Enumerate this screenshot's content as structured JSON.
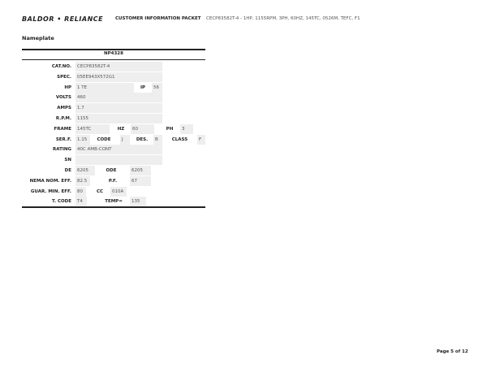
{
  "header": {
    "logo": "BALDOR • RELIANCE",
    "doc_title": "CUSTOMER INFORMATION PACKET",
    "description": "CECP83582T-4 - 1HP, 1155RPM, 3PH, 60HZ, 145TC, 0526M, TEFC, F1"
  },
  "section_title": "Nameplate",
  "nameplate": {
    "id": "NP4328",
    "rows": [
      {
        "label": "CAT.NO.",
        "value": "CECP83582T-4"
      },
      {
        "label": "SPEC.",
        "value": "05EE943X572G1"
      },
      {
        "label": "HP",
        "value": "1 TE",
        "f2_label": "IP",
        "f2_value": "56"
      },
      {
        "label": "VOLTS",
        "value": "460"
      },
      {
        "label": "AMPS",
        "value": "1.7"
      },
      {
        "label": "R.P.M.",
        "value": "1155"
      },
      {
        "label": "FRAME",
        "value": "145TC",
        "f2_label": "HZ",
        "f2_value": "60",
        "f3_label": "PH",
        "f3_value": "3"
      },
      {
        "label": "SER.F.",
        "value": "1.15",
        "f2_label": "CODE",
        "f2_value": "J",
        "f3_label": "DES.",
        "f3_value": "B",
        "f4_label": "CLASS",
        "f4_value": "F"
      },
      {
        "label": "RATING",
        "value": "40C AMB-CONT"
      },
      {
        "label": "SN",
        "value": ""
      },
      {
        "label": "DE",
        "value": "6205",
        "f2_label": "ODE",
        "f2_value": "6205"
      },
      {
        "label": "NEMA NOM. EFF.",
        "value": "82.5",
        "f2_label": "P.F.",
        "f2_value": "67"
      },
      {
        "label": "GUAR. MIN. EFF.",
        "value": "80",
        "f2_label": "CC",
        "f2_value": "010A"
      },
      {
        "label": "T. CODE",
        "value": "T4",
        "f2_label": "TEMP=",
        "f2_value": "135"
      }
    ]
  },
  "footer": {
    "page": "Page 5 of 12"
  }
}
